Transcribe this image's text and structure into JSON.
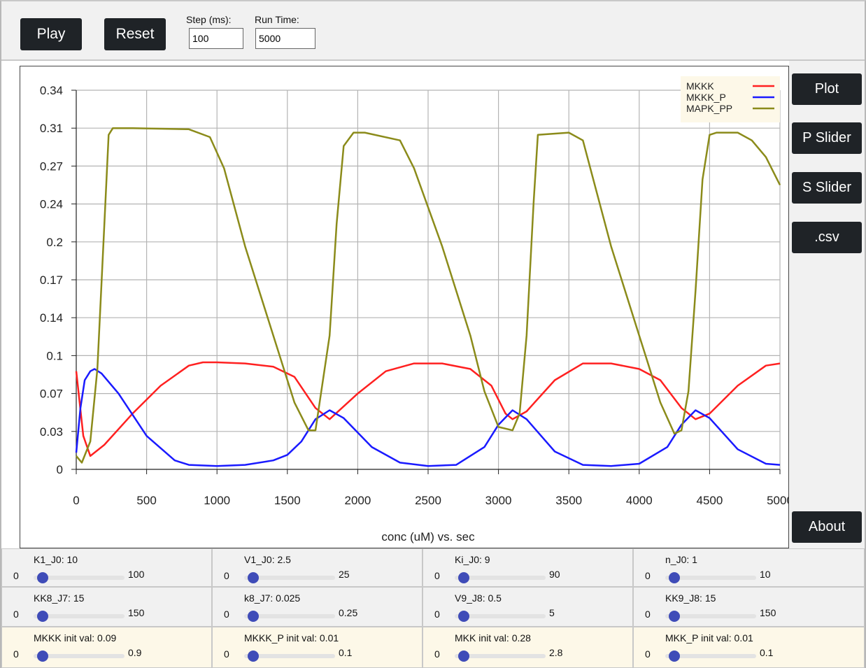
{
  "toolbar": {
    "play_label": "Play",
    "reset_label": "Reset",
    "step_label": "Step (ms):",
    "step_value": "100",
    "runtime_label": "Run Time:",
    "runtime_value": "5000"
  },
  "sidebar": {
    "plot_label": "Plot",
    "pslider_label": "P Slider",
    "sslider_label": "S Slider",
    "csv_label": ".csv",
    "about_label": "About"
  },
  "chart_data": {
    "type": "line",
    "xlabel": "conc (uM) vs. sec",
    "xlim": [
      0,
      5000
    ],
    "ylim": [
      0,
      0.34
    ],
    "xticks": [
      0,
      500,
      1000,
      1500,
      2000,
      2500,
      3000,
      3500,
      4000,
      4500,
      5000
    ],
    "xtick_labels": [
      "0",
      "500",
      "1000",
      "1500",
      "2000",
      "2500",
      "3000",
      "3500",
      "4000",
      "4500",
      "5000"
    ],
    "yticks": [
      0,
      0.034,
      0.068,
      0.102,
      0.136,
      0.17,
      0.204,
      0.238,
      0.272,
      0.306,
      0.34
    ],
    "ytick_labels": [
      "0",
      "0.03",
      "0.07",
      "0.1",
      "0.14",
      "0.17",
      "0.2",
      "0.24",
      "0.27",
      "0.31",
      "0.34"
    ],
    "grid": true,
    "legend_position": "top-right",
    "series": [
      {
        "name": "MKKK",
        "color": "#ff2020",
        "x": [
          0,
          50,
          100,
          200,
          400,
          600,
          800,
          900,
          1000,
          1200,
          1400,
          1550,
          1700,
          1800,
          2000,
          2200,
          2400,
          2600,
          2800,
          2950,
          3050,
          3100,
          3200,
          3400,
          3600,
          3800,
          4000,
          4150,
          4300,
          4400,
          4500,
          4700,
          4900,
          5000
        ],
        "y": [
          0.088,
          0.03,
          0.012,
          0.022,
          0.05,
          0.075,
          0.093,
          0.096,
          0.096,
          0.095,
          0.092,
          0.083,
          0.055,
          0.045,
          0.068,
          0.088,
          0.095,
          0.095,
          0.09,
          0.075,
          0.05,
          0.045,
          0.052,
          0.08,
          0.095,
          0.095,
          0.09,
          0.08,
          0.055,
          0.045,
          0.05,
          0.075,
          0.093,
          0.095
        ]
      },
      {
        "name": "MKKK_P",
        "color": "#1a1aff",
        "x": [
          0,
          30,
          60,
          100,
          130,
          180,
          300,
          500,
          700,
          800,
          1000,
          1200,
          1400,
          1500,
          1600,
          1700,
          1800,
          1900,
          2100,
          2300,
          2500,
          2700,
          2900,
          3000,
          3100,
          3200,
          3400,
          3600,
          3800,
          4000,
          4200,
          4300,
          4400,
          4500,
          4700,
          4900,
          5000
        ],
        "y": [
          0.015,
          0.055,
          0.08,
          0.088,
          0.09,
          0.086,
          0.068,
          0.03,
          0.008,
          0.004,
          0.003,
          0.004,
          0.008,
          0.013,
          0.025,
          0.045,
          0.053,
          0.046,
          0.02,
          0.006,
          0.003,
          0.004,
          0.02,
          0.04,
          0.053,
          0.045,
          0.016,
          0.004,
          0.003,
          0.005,
          0.02,
          0.04,
          0.053,
          0.046,
          0.018,
          0.005,
          0.004
        ]
      },
      {
        "name": "MAPK_PP",
        "color": "#8b8b1a",
        "x": [
          0,
          40,
          100,
          150,
          200,
          230,
          260,
          400,
          800,
          950,
          1050,
          1200,
          1400,
          1550,
          1650,
          1700,
          1800,
          1850,
          1900,
          1970,
          2000,
          2050,
          2300,
          2400,
          2600,
          2800,
          2900,
          3000,
          3100,
          3150,
          3200,
          3250,
          3280,
          3500,
          3600,
          3800,
          4000,
          4150,
          4250,
          4300,
          4350,
          4400,
          4450,
          4500,
          4550,
          4700,
          4800,
          4900,
          5000
        ],
        "y": [
          0.012,
          0.006,
          0.025,
          0.09,
          0.22,
          0.3,
          0.306,
          0.306,
          0.305,
          0.298,
          0.27,
          0.2,
          0.12,
          0.06,
          0.035,
          0.035,
          0.12,
          0.22,
          0.29,
          0.302,
          0.302,
          0.302,
          0.295,
          0.27,
          0.2,
          0.12,
          0.07,
          0.038,
          0.035,
          0.05,
          0.12,
          0.24,
          0.3,
          0.302,
          0.295,
          0.2,
          0.12,
          0.06,
          0.032,
          0.035,
          0.07,
          0.16,
          0.26,
          0.3,
          0.302,
          0.302,
          0.295,
          0.28,
          0.255
        ]
      }
    ]
  },
  "slider_rows": [
    [
      {
        "name": "K1_J0: 10",
        "min": "0",
        "max": "100",
        "fraction": 0.1
      },
      {
        "name": "V1_J0: 2.5",
        "min": "0",
        "max": "25",
        "fraction": 0.1
      },
      {
        "name": "Ki_J0: 9",
        "min": "0",
        "max": "90",
        "fraction": 0.1
      },
      {
        "name": "n_J0: 1",
        "min": "0",
        "max": "10",
        "fraction": 0.1
      }
    ],
    [
      {
        "name": "KK8_J7: 15",
        "min": "0",
        "max": "150",
        "fraction": 0.1
      },
      {
        "name": "k8_J7: 0.025",
        "min": "0",
        "max": "0.25",
        "fraction": 0.1
      },
      {
        "name": "V9_J8: 0.5",
        "min": "0",
        "max": "5",
        "fraction": 0.1
      },
      {
        "name": "KK9_J8: 15",
        "min": "0",
        "max": "150",
        "fraction": 0.1
      }
    ],
    [
      {
        "name": "MKKK init val: 0.09",
        "min": "0",
        "max": "0.9",
        "fraction": 0.1
      },
      {
        "name": "MKKK_P init val: 0.01",
        "min": "0",
        "max": "0.1",
        "fraction": 0.1
      },
      {
        "name": "MKK init val: 0.28",
        "min": "0",
        "max": "2.8",
        "fraction": 0.1
      },
      {
        "name": "MKK_P init val: 0.01",
        "min": "0",
        "max": "0.1",
        "fraction": 0.1
      }
    ]
  ]
}
